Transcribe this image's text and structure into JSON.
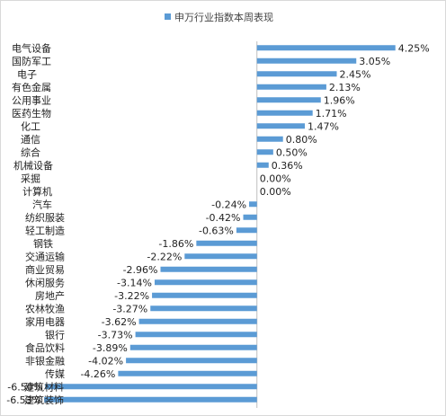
{
  "chart_data": {
    "type": "bar",
    "orientation": "horizontal",
    "legend": {
      "label": "申万行业指数本周表现",
      "position": "top"
    },
    "bar_color": "#5b9bd5",
    "grid": false,
    "categories": [
      "电气设备",
      "国防军工",
      "电子",
      "有色金属",
      "公用事业",
      "医药生物",
      "化工",
      "通信",
      "综合",
      "机械设备",
      "采掘",
      "计算机",
      "汽车",
      "纺织服装",
      "轻工制造",
      "钢铁",
      "交通运输",
      "商业贸易",
      "休闲服务",
      "房地产",
      "农林牧渔",
      "家用电器",
      "银行",
      "食品饮料",
      "非银金融",
      "传媒",
      "建筑材料",
      "建筑装饰"
    ],
    "values": [
      4.25,
      3.05,
      2.45,
      2.13,
      1.96,
      1.71,
      1.47,
      0.8,
      0.5,
      0.36,
      0.0,
      0.0,
      -0.24,
      -0.42,
      -0.63,
      -1.86,
      -2.22,
      -2.96,
      -3.14,
      -3.22,
      -3.27,
      -3.62,
      -3.73,
      -3.89,
      -4.02,
      -4.26,
      -6.5,
      -6.53
    ],
    "data_labels": [
      "4.25%",
      "3.05%",
      "2.45%",
      "2.13%",
      "1.96%",
      "1.71%",
      "1.47%",
      "0.80%",
      "0.50%",
      "0.36%",
      "0.00%",
      "0.00%",
      "-0.24%",
      "-0.42%",
      "-0.63%",
      "-1.86%",
      "-2.22%",
      "-2.96%",
      "-3.14%",
      "-3.22%",
      "-3.27%",
      "-3.62%",
      "-3.73%",
      "-3.89%",
      "-4.02%",
      "-4.26%",
      "-6.50%",
      "-6.53%"
    ],
    "xlim": [
      -7.5,
      5.5
    ]
  }
}
